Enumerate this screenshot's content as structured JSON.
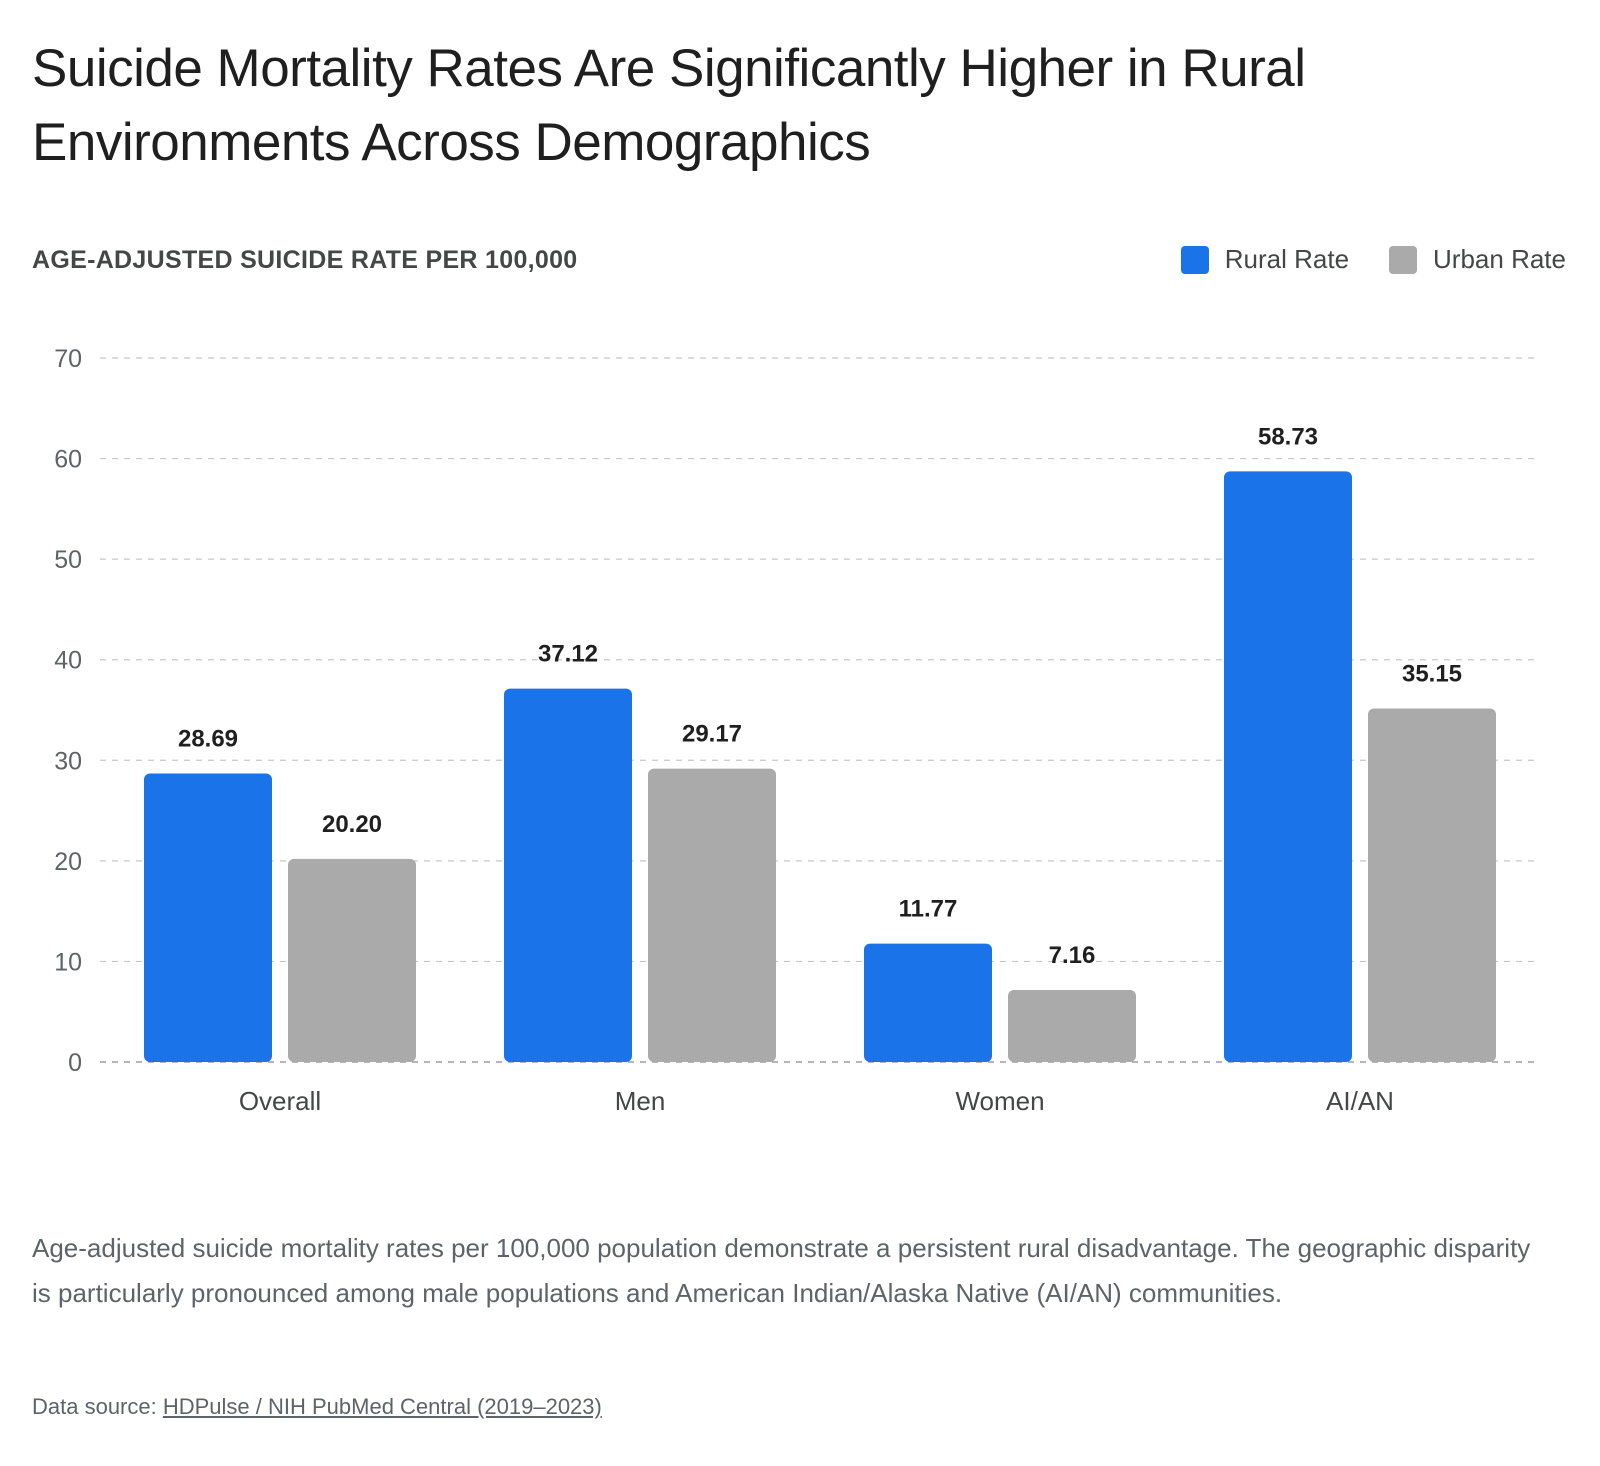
{
  "title": "Suicide Mortality Rates Are Significantly Higher in Rural Environments Across Demographics",
  "y_axis_title": "AGE-ADJUSTED SUICIDE RATE PER 100,000",
  "legend": [
    {
      "label": "Rural Rate",
      "color": "#1a73e8"
    },
    {
      "label": "Urban Rate",
      "color": "#aaaaaa"
    }
  ],
  "caption": "Age-adjusted suicide mortality rates per 100,000 population demonstrate a persistent rural disadvantage. The geographic disparity is particularly pronounced among male populations and American Indian/Alaska Native (AI/AN) communities.",
  "source": {
    "prefix": "Data source: ",
    "link_text": "HDPulse / NIH PubMed Central (2019–2023)"
  },
  "chart_data": {
    "type": "bar",
    "categories": [
      "Overall",
      "Men",
      "Women",
      "AI/AN"
    ],
    "series": [
      {
        "name": "Rural Rate",
        "color": "#1a73e8",
        "values": [
          28.69,
          37.12,
          11.77,
          58.73
        ],
        "labels": [
          "28.69",
          "37.12",
          "11.77",
          "58.73"
        ]
      },
      {
        "name": "Urban Rate",
        "color": "#aaaaaa",
        "values": [
          20.2,
          29.17,
          7.16,
          35.15
        ],
        "labels": [
          "20.20",
          "29.17",
          "7.16",
          "35.15"
        ]
      }
    ],
    "ylabel": "AGE-ADJUSTED SUICIDE RATE PER 100,000",
    "ylim": [
      0,
      70
    ],
    "yticks": [
      0,
      10,
      20,
      30,
      40,
      50,
      60,
      70
    ],
    "grid": true,
    "legend_position": "top-right"
  }
}
